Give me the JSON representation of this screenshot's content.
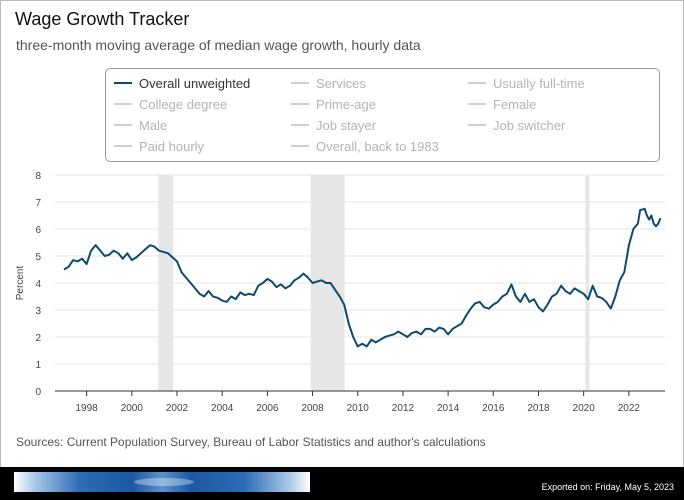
{
  "header": {
    "title": "Wage Growth Tracker",
    "subtitle": "three-month moving average of median wage growth, hourly data"
  },
  "legend": {
    "items": [
      {
        "label": "Overall unweighted",
        "active": true
      },
      {
        "label": "Services",
        "active": false
      },
      {
        "label": "Usually full-time",
        "active": false
      },
      {
        "label": "College degree",
        "active": false
      },
      {
        "label": "Prime-age",
        "active": false
      },
      {
        "label": "Female",
        "active": false
      },
      {
        "label": "Male",
        "active": false
      },
      {
        "label": "Job stayer",
        "active": false
      },
      {
        "label": "Job switcher",
        "active": false
      },
      {
        "label": "Paid hourly",
        "active": false
      },
      {
        "label": "Overall, back to 1983",
        "active": false
      }
    ]
  },
  "colors": {
    "series": "#0e4a6e",
    "recession": "#e6e6e6",
    "grid": "#e6e6e6",
    "axis": "#333333"
  },
  "chart_data": {
    "type": "line",
    "ylabel": "Percent",
    "xlabel": "",
    "ylim": [
      0,
      8
    ],
    "xlim": [
      1996.6,
      2023.6
    ],
    "yticks": [
      0,
      1,
      2,
      3,
      4,
      5,
      6,
      7,
      8
    ],
    "xticks": [
      1998,
      2000,
      2002,
      2004,
      2006,
      2008,
      2010,
      2012,
      2014,
      2016,
      2018,
      2020,
      2022
    ],
    "grid": true,
    "recessions": [
      [
        2001.17,
        2001.83
      ],
      [
        2007.92,
        2009.42
      ],
      [
        2020.08,
        2020.25
      ]
    ],
    "series": [
      {
        "name": "Overall unweighted",
        "points": [
          [
            1997.0,
            4.5
          ],
          [
            1997.2,
            4.6
          ],
          [
            1997.4,
            4.85
          ],
          [
            1997.6,
            4.8
          ],
          [
            1997.8,
            4.9
          ],
          [
            1998.0,
            4.7
          ],
          [
            1998.2,
            5.2
          ],
          [
            1998.4,
            5.4
          ],
          [
            1998.6,
            5.2
          ],
          [
            1998.8,
            5.0
          ],
          [
            1999.0,
            5.05
          ],
          [
            1999.2,
            5.2
          ],
          [
            1999.4,
            5.1
          ],
          [
            1999.6,
            4.9
          ],
          [
            1999.8,
            5.1
          ],
          [
            2000.0,
            4.85
          ],
          [
            2000.2,
            4.95
          ],
          [
            2000.4,
            5.1
          ],
          [
            2000.6,
            5.25
          ],
          [
            2000.8,
            5.4
          ],
          [
            2001.0,
            5.35
          ],
          [
            2001.2,
            5.2
          ],
          [
            2001.4,
            5.15
          ],
          [
            2001.6,
            5.1
          ],
          [
            2001.8,
            4.95
          ],
          [
            2002.0,
            4.8
          ],
          [
            2002.2,
            4.4
          ],
          [
            2002.4,
            4.2
          ],
          [
            2002.6,
            4.0
          ],
          [
            2002.8,
            3.8
          ],
          [
            2003.0,
            3.6
          ],
          [
            2003.2,
            3.5
          ],
          [
            2003.4,
            3.7
          ],
          [
            2003.6,
            3.5
          ],
          [
            2003.8,
            3.45
          ],
          [
            2004.0,
            3.35
          ],
          [
            2004.2,
            3.3
          ],
          [
            2004.4,
            3.5
          ],
          [
            2004.6,
            3.4
          ],
          [
            2004.8,
            3.65
          ],
          [
            2005.0,
            3.55
          ],
          [
            2005.2,
            3.6
          ],
          [
            2005.4,
            3.55
          ],
          [
            2005.6,
            3.9
          ],
          [
            2005.8,
            4.0
          ],
          [
            2006.0,
            4.15
          ],
          [
            2006.2,
            4.05
          ],
          [
            2006.4,
            3.85
          ],
          [
            2006.6,
            3.95
          ],
          [
            2006.8,
            3.8
          ],
          [
            2007.0,
            3.9
          ],
          [
            2007.2,
            4.1
          ],
          [
            2007.4,
            4.2
          ],
          [
            2007.6,
            4.35
          ],
          [
            2007.8,
            4.2
          ],
          [
            2008.0,
            4.0
          ],
          [
            2008.2,
            4.05
          ],
          [
            2008.4,
            4.1
          ],
          [
            2008.6,
            4.0
          ],
          [
            2008.8,
            4.0
          ],
          [
            2009.0,
            3.75
          ],
          [
            2009.2,
            3.5
          ],
          [
            2009.4,
            3.2
          ],
          [
            2009.6,
            2.5
          ],
          [
            2009.8,
            2.0
          ],
          [
            2010.0,
            1.65
          ],
          [
            2010.2,
            1.75
          ],
          [
            2010.4,
            1.65
          ],
          [
            2010.6,
            1.9
          ],
          [
            2010.8,
            1.8
          ],
          [
            2011.0,
            1.9
          ],
          [
            2011.2,
            2.0
          ],
          [
            2011.4,
            2.05
          ],
          [
            2011.6,
            2.1
          ],
          [
            2011.8,
            2.2
          ],
          [
            2012.0,
            2.1
          ],
          [
            2012.2,
            2.0
          ],
          [
            2012.4,
            2.15
          ],
          [
            2012.6,
            2.2
          ],
          [
            2012.8,
            2.1
          ],
          [
            2013.0,
            2.3
          ],
          [
            2013.2,
            2.3
          ],
          [
            2013.4,
            2.2
          ],
          [
            2013.6,
            2.35
          ],
          [
            2013.8,
            2.3
          ],
          [
            2014.0,
            2.1
          ],
          [
            2014.2,
            2.3
          ],
          [
            2014.4,
            2.4
          ],
          [
            2014.6,
            2.5
          ],
          [
            2014.8,
            2.8
          ],
          [
            2015.0,
            3.05
          ],
          [
            2015.2,
            3.25
          ],
          [
            2015.4,
            3.3
          ],
          [
            2015.6,
            3.1
          ],
          [
            2015.8,
            3.05
          ],
          [
            2016.0,
            3.2
          ],
          [
            2016.2,
            3.3
          ],
          [
            2016.4,
            3.5
          ],
          [
            2016.6,
            3.6
          ],
          [
            2016.8,
            3.95
          ],
          [
            2017.0,
            3.5
          ],
          [
            2017.2,
            3.3
          ],
          [
            2017.4,
            3.6
          ],
          [
            2017.6,
            3.3
          ],
          [
            2017.8,
            3.4
          ],
          [
            2018.0,
            3.1
          ],
          [
            2018.2,
            2.95
          ],
          [
            2018.4,
            3.2
          ],
          [
            2018.6,
            3.5
          ],
          [
            2018.8,
            3.6
          ],
          [
            2019.0,
            3.9
          ],
          [
            2019.2,
            3.7
          ],
          [
            2019.4,
            3.6
          ],
          [
            2019.6,
            3.8
          ],
          [
            2019.8,
            3.7
          ],
          [
            2020.0,
            3.6
          ],
          [
            2020.2,
            3.4
          ],
          [
            2020.4,
            3.9
          ],
          [
            2020.6,
            3.5
          ],
          [
            2020.8,
            3.45
          ],
          [
            2021.0,
            3.3
          ],
          [
            2021.2,
            3.05
          ],
          [
            2021.4,
            3.5
          ],
          [
            2021.6,
            4.1
          ],
          [
            2021.8,
            4.4
          ],
          [
            2022.0,
            5.4
          ],
          [
            2022.2,
            6.0
          ],
          [
            2022.4,
            6.2
          ],
          [
            2022.5,
            6.7
          ],
          [
            2022.7,
            6.75
          ],
          [
            2022.8,
            6.5
          ],
          [
            2022.9,
            6.35
          ],
          [
            2023.0,
            6.5
          ],
          [
            2023.1,
            6.2
          ],
          [
            2023.2,
            6.1
          ],
          [
            2023.3,
            6.2
          ],
          [
            2023.4,
            6.4
          ]
        ]
      }
    ]
  },
  "sources": "Sources: Current Population Survey, Bureau of Labor Statistics and author's calculations",
  "footer": {
    "exported": "Exported on: Friday, May 5, 2023"
  }
}
